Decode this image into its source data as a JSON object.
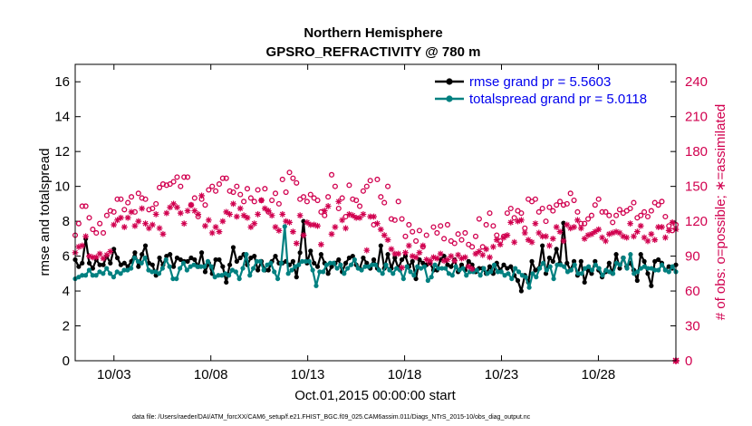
{
  "chart_data": {
    "type": "line",
    "title": "Northern Hemisphere",
    "subtitle": "GPSRO_REFRACTIVITY @ 780 m",
    "xlabel": "Oct.01,2015 00:00:00 start",
    "ylabel": "rmse and totalspread",
    "y2label": "# of obs: o=possible; ∗=assimilated",
    "x_tick_labels": [
      "10/03",
      "10/08",
      "10/13",
      "10/18",
      "10/23",
      "10/28"
    ],
    "x_tick_days": [
      3,
      8,
      13,
      18,
      23,
      28
    ],
    "xlim": [
      1.0,
      32.0
    ],
    "y_ticks": [
      0,
      2,
      4,
      6,
      8,
      10,
      12,
      14,
      16
    ],
    "ylim": [
      0,
      17
    ],
    "y2_ticks": [
      0,
      30,
      60,
      90,
      120,
      150,
      180,
      210,
      240
    ],
    "y2lim": [
      0,
      255
    ],
    "legend_position": "top-right",
    "footer": "data file: /Users/raeder/DAI/ATM_forcXX/CAM6_setup/f.e21.FHIST_BGC.f09_025.CAM6assim.011/Diags_NTrS_2015-10/obs_diag_output.nc",
    "series": [
      {
        "name": "rmse grand pr = 5.5603",
        "color": "#000000",
        "marker": "dot",
        "axis": "left",
        "values": [
          5.8,
          5.4,
          5.6,
          7.0,
          5.6,
          5.3,
          5.8,
          5.5,
          5.5,
          6.0,
          5.6,
          6.4,
          5.9,
          5.5,
          5.6,
          5.4,
          5.7,
          6.2,
          5.4,
          6.1,
          6.6,
          5.6,
          5.5,
          4.9,
          5.9,
          5.5,
          6.0,
          6.1,
          5.4,
          5.9,
          5.8,
          5.7,
          5.7,
          5.9,
          5.8,
          5.4,
          6.2,
          5.1,
          5.6,
          5.0,
          5.8,
          5.8,
          5.4,
          4.5,
          5.5,
          6.5,
          5.7,
          5.9,
          6.1,
          5.5,
          5.9,
          6.0,
          5.2,
          5.7,
          5.2,
          5.2,
          5.7,
          6.0,
          5.6,
          5.6,
          5.7,
          5.5,
          5.7,
          4.8,
          6.2,
          8.0,
          5.6,
          6.3,
          5.6,
          5.4,
          6.1,
          5.6,
          5.0,
          5.4,
          5.6,
          5.8,
          5.1,
          5.6,
          5.9,
          6.0,
          5.5,
          5.3,
          5.9,
          5.6,
          5.3,
          5.8,
          5.3,
          6.6,
          5.3,
          6.1,
          5.3,
          5.9,
          5.3,
          5.8,
          6.0,
          5.4,
          5.7,
          4.7,
          5.8,
          5.6,
          5.5,
          5.6,
          5.2,
          5.2,
          5.8,
          6.0,
          5.5,
          5.4,
          5.8,
          5.1,
          5.5,
          5.2,
          5.7,
          5.5,
          5.1,
          5.3,
          5.3,
          5.0,
          5.4,
          5.0,
          5.6,
          5.2,
          5.5,
          5.3,
          5.4,
          4.9,
          4.6,
          4.0,
          4.9,
          4.5,
          5.7,
          5.2,
          5.3,
          6.6,
          5.0,
          5.9,
          5.7,
          6.4,
          5.6,
          7.9,
          5.6,
          5.2,
          5.7,
          4.9,
          5.7,
          4.5,
          5.2,
          5.0,
          5.7,
          5.2,
          4.8,
          5.1,
          5.6,
          5.0,
          6.1,
          5.3,
          5.9,
          5.4,
          5.6,
          5.2,
          4.6,
          6.1,
          5.7,
          5.0,
          4.3,
          5.7,
          5.8,
          5.6,
          5.2,
          5.4,
          5.3,
          5.5
        ]
      },
      {
        "name": "totalspread grand pr = 5.0118",
        "color": "#008080",
        "marker": "dot",
        "axis": "left",
        "values": [
          4.7,
          4.8,
          4.9,
          4.9,
          5.2,
          4.9,
          4.9,
          5.1,
          5.0,
          5.3,
          5.0,
          4.8,
          5.1,
          5.0,
          5.2,
          5.2,
          5.3,
          5.9,
          5.7,
          5.6,
          5.9,
          5.2,
          5.1,
          5.1,
          5.0,
          5.3,
          5.8,
          5.4,
          4.7,
          4.7,
          5.3,
          5.6,
          5.2,
          5.4,
          5.5,
          5.4,
          5.4,
          5.4,
          5.7,
          5.4,
          4.8,
          4.9,
          4.9,
          5.0,
          4.9,
          5.2,
          5.1,
          4.7,
          5.3,
          6.1,
          4.9,
          5.3,
          5.7,
          5.7,
          5.2,
          5.5,
          5.6,
          5.1,
          4.7,
          5.6,
          7.7,
          5.0,
          5.2,
          5.4,
          5.5,
          5.7,
          5.7,
          5.7,
          5.2,
          4.3,
          5.1,
          5.1,
          5.5,
          5.6,
          5.6,
          5.3,
          5.5,
          5.0,
          5.3,
          5.5,
          5.8,
          5.3,
          5.2,
          5.4,
          5.4,
          5.5,
          5.5,
          5.2,
          5.0,
          5.5,
          5.2,
          5.0,
          5.3,
          5.2,
          4.7,
          5.4,
          5.1,
          4.9,
          5.4,
          5.3,
          5.4,
          4.6,
          4.8,
          5.5,
          5.3,
          5.3,
          5.3,
          5.0,
          4.9,
          5.4,
          5.2,
          5.3,
          4.9,
          5.1,
          5.1,
          5.2,
          4.9,
          5.3,
          5.0,
          5.1,
          5.5,
          5.1,
          5.1,
          4.9,
          5.0,
          4.7,
          5.3,
          5.1,
          4.9,
          4.8,
          4.2,
          5.0,
          4.8,
          5.3,
          5.6,
          5.2,
          5.4,
          4.7,
          5.5,
          5.5,
          5.4,
          5.1,
          5.2,
          5.5,
          5.0,
          5.0,
          5.3,
          5.4,
          5.2,
          5.5,
          5.3,
          4.9,
          5.2,
          5.1,
          5.0,
          5.6,
          5.5,
          5.9,
          5.3,
          6.1,
          5.0,
          5.1,
          5.3,
          5.4,
          5.3,
          5.3,
          5.2,
          5.2,
          5.5,
          5.2,
          5.1,
          5.4,
          5.1
        ]
      },
      {
        "name": "possible",
        "color": "#d1004f",
        "marker": "circle",
        "axis": "right",
        "values": [
          108,
          118,
          133,
          133,
          123,
          113,
          110,
          118,
          110,
          125,
          129,
          128,
          139,
          139,
          130,
          136,
          141,
          128,
          144,
          140,
          139,
          130,
          131,
          135,
          149,
          152,
          151,
          152,
          154,
          158,
          150,
          158,
          158,
          134,
          140,
          124,
          139,
          134,
          147,
          150,
          146,
          152,
          157,
          157,
          146,
          145,
          150,
          143,
          137,
          148,
          140,
          137,
          147,
          138,
          148,
          128,
          138,
          144,
          135,
          156,
          145,
          162,
          157,
          153,
          139,
          141,
          137,
          143,
          140,
          138,
          128,
          125,
          141,
          160,
          150,
          131,
          140,
          124,
          151,
          139,
          138,
          133,
          146,
          150,
          155,
          117,
          156,
          141,
          136,
          150,
          122,
          121,
          137,
          122,
          107,
          117,
          111,
          103,
          112,
          98,
          108,
          84,
          115,
          110,
          116,
          105,
          117,
          103,
          101,
          109,
          104,
          110,
          100,
          98,
          107,
          122,
          98,
          117,
          127,
          116,
          108,
          103,
          107,
          127,
          131,
          123,
          129,
          127,
          114,
          139,
          137,
          139,
          128,
          131,
          120,
          132,
          129,
          134,
          137,
          134,
          135,
          144,
          138,
          128,
          118,
          118,
          122,
          125,
          134,
          139,
          128,
          128,
          125,
          119,
          125,
          130,
          127,
          129,
          131,
          136,
          123,
          125,
          128,
          124,
          129,
          136,
          134,
          137,
          124,
          116,
          112,
          117
        ]
      },
      {
        "name": "assimilated",
        "color": "#d1004f",
        "marker": "asterisk",
        "axis": "right",
        "values": [
          93,
          98,
          99,
          107,
          90,
          89,
          89,
          92,
          88,
          91,
          94,
          117,
          121,
          123,
          115,
          123,
          128,
          116,
          120,
          131,
          118,
          114,
          117,
          126,
          114,
          109,
          127,
          132,
          135,
          132,
          127,
          118,
          129,
          134,
          129,
          126,
          142,
          116,
          121,
          110,
          115,
          111,
          120,
          128,
          126,
          135,
          124,
          131,
          125,
          123,
          115,
          118,
          126,
          138,
          131,
          129,
          125,
          115,
          112,
          126,
          120,
          119,
          111,
          101,
          125,
          108,
          119,
          117,
          117,
          116,
          100,
          129,
          133,
          109,
          115,
          137,
          121,
          114,
          126,
          125,
          123,
          123,
          126,
          95,
          124,
          124,
          118,
          113,
          108,
          104,
          96,
          92,
          92,
          80,
          93,
          99,
          90,
          89,
          93,
          99,
          87,
          86,
          89,
          88,
          92,
          86,
          87,
          90,
          86,
          91,
          88,
          89,
          81,
          79,
          92,
          94,
          91,
          96,
          89,
          98,
          104,
          100,
          106,
          108,
          119,
          102,
          120,
          121,
          110,
          104,
          102,
          118,
          110,
          107,
          107,
          99,
          105,
          115,
          111,
          103,
          117,
          114,
          115,
          121,
          114,
          105,
          108,
          109,
          111,
          113,
          106,
          103,
          109,
          110,
          111,
          110,
          107,
          106,
          118,
          107,
          111,
          116,
          106,
          103,
          109,
          104,
          115,
          115,
          106,
          112,
          119,
          113
        ]
      }
    ]
  }
}
